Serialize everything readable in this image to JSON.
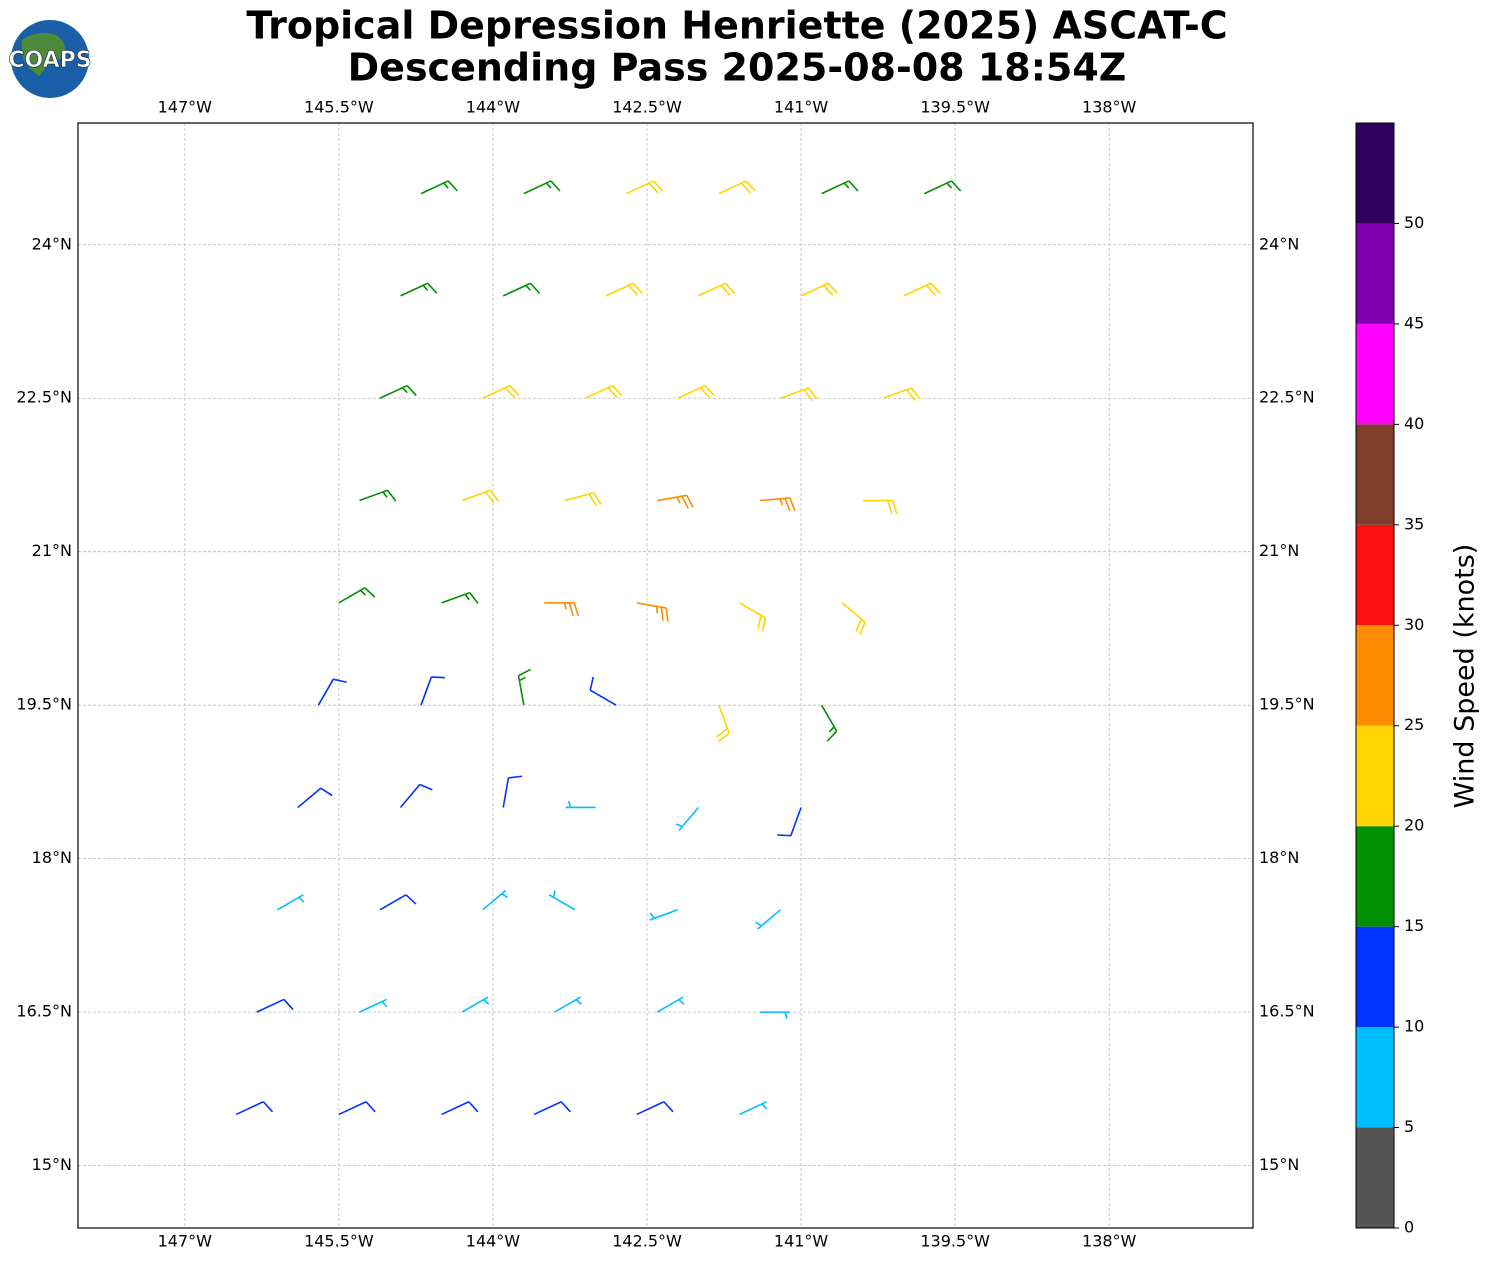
{
  "chart_data": {
    "type": "barbs",
    "logo": "COAPS",
    "title": "Tropical Depression Henriette (2025) ASCAT-C",
    "subtitle": "Descending Pass 2025-08-08 18:54Z",
    "xlim": [
      -148.04,
      -136.6
    ],
    "ylim": [
      14.39,
      25.19
    ],
    "xticks": [
      {
        "value": -147,
        "label": "147°W"
      },
      {
        "value": -145.5,
        "label": "145.5°W"
      },
      {
        "value": -144,
        "label": "144°W"
      },
      {
        "value": -142.5,
        "label": "142.5°W"
      },
      {
        "value": -141,
        "label": "141°W"
      },
      {
        "value": -139.5,
        "label": "139.5°W"
      },
      {
        "value": -138,
        "label": "138°W"
      }
    ],
    "yticks": [
      {
        "value": 24,
        "label": "24°N"
      },
      {
        "value": 22.5,
        "label": "22.5°N"
      },
      {
        "value": 21,
        "label": "21°N"
      },
      {
        "value": 19.5,
        "label": "19.5°N"
      },
      {
        "value": 18,
        "label": "18°N"
      },
      {
        "value": 16.5,
        "label": "16.5°N"
      },
      {
        "value": 15,
        "label": "15°N"
      }
    ],
    "grid": true,
    "colorbar": {
      "label": "Wind Speed (knots)",
      "lim": [
        0,
        55
      ],
      "ticks": [
        0,
        5,
        10,
        15,
        20,
        25,
        30,
        35,
        40,
        45,
        50
      ],
      "levels": [
        0,
        5,
        10,
        15,
        20,
        25,
        30,
        35,
        40,
        45,
        50,
        55
      ],
      "colors": [
        "#555555",
        "#00bfff",
        "#0033ff",
        "#009000",
        "#ffd400",
        "#ff8c00",
        "#ff1010",
        "#7f3f2a",
        "#ff00ff",
        "#8000b0",
        "#300060"
      ]
    },
    "barbs": [
      {
        "lon": -144.7,
        "lat": 24.5,
        "speed": 17,
        "dir": 65
      },
      {
        "lon": -143.7,
        "lat": 24.5,
        "speed": 17,
        "dir": 65
      },
      {
        "lon": -142.7,
        "lat": 24.5,
        "speed": 22,
        "dir": 65
      },
      {
        "lon": -141.8,
        "lat": 24.5,
        "speed": 22,
        "dir": 65
      },
      {
        "lon": -140.8,
        "lat": 24.5,
        "speed": 17,
        "dir": 65
      },
      {
        "lon": -139.8,
        "lat": 24.5,
        "speed": 17,
        "dir": 65
      },
      {
        "lon": -144.9,
        "lat": 23.5,
        "speed": 17,
        "dir": 65
      },
      {
        "lon": -143.9,
        "lat": 23.5,
        "speed": 17,
        "dir": 65
      },
      {
        "lon": -142.9,
        "lat": 23.5,
        "speed": 22,
        "dir": 65
      },
      {
        "lon": -142.0,
        "lat": 23.5,
        "speed": 22,
        "dir": 65
      },
      {
        "lon": -141.0,
        "lat": 23.5,
        "speed": 22,
        "dir": 65
      },
      {
        "lon": -140.0,
        "lat": 23.5,
        "speed": 22,
        "dir": 65
      },
      {
        "lon": -145.1,
        "lat": 22.5,
        "speed": 17,
        "dir": 65
      },
      {
        "lon": -144.1,
        "lat": 22.5,
        "speed": 22,
        "dir": 65
      },
      {
        "lon": -143.1,
        "lat": 22.5,
        "speed": 22,
        "dir": 65
      },
      {
        "lon": -142.2,
        "lat": 22.5,
        "speed": 22,
        "dir": 65
      },
      {
        "lon": -141.2,
        "lat": 22.5,
        "speed": 22,
        "dir": 70
      },
      {
        "lon": -140.2,
        "lat": 22.5,
        "speed": 22,
        "dir": 70
      },
      {
        "lon": -145.3,
        "lat": 21.5,
        "speed": 17,
        "dir": 70
      },
      {
        "lon": -144.3,
        "lat": 21.5,
        "speed": 22,
        "dir": 70
      },
      {
        "lon": -143.3,
        "lat": 21.5,
        "speed": 22,
        "dir": 75
      },
      {
        "lon": -142.4,
        "lat": 21.5,
        "speed": 27,
        "dir": 80
      },
      {
        "lon": -141.4,
        "lat": 21.5,
        "speed": 27,
        "dir": 85
      },
      {
        "lon": -140.4,
        "lat": 21.5,
        "speed": 22,
        "dir": 90
      },
      {
        "lon": -145.5,
        "lat": 20.5,
        "speed": 17,
        "dir": 60
      },
      {
        "lon": -144.5,
        "lat": 20.5,
        "speed": 17,
        "dir": 70
      },
      {
        "lon": -143.5,
        "lat": 20.5,
        "speed": 27,
        "dir": 90
      },
      {
        "lon": -142.6,
        "lat": 20.5,
        "speed": 27,
        "dir": 100
      },
      {
        "lon": -141.6,
        "lat": 20.5,
        "speed": 22,
        "dir": 120
      },
      {
        "lon": -140.6,
        "lat": 20.5,
        "speed": 22,
        "dir": 130
      },
      {
        "lon": -145.7,
        "lat": 19.5,
        "speed": 12,
        "dir": 30
      },
      {
        "lon": -144.7,
        "lat": 19.5,
        "speed": 14,
        "dir": 20
      },
      {
        "lon": -143.7,
        "lat": 19.5,
        "speed": 17,
        "dir": 350
      },
      {
        "lon": -142.8,
        "lat": 19.5,
        "speed": 12,
        "dir": 300
      },
      {
        "lon": -141.8,
        "lat": 19.5,
        "speed": 22,
        "dir": 160
      },
      {
        "lon": -140.8,
        "lat": 19.5,
        "speed": 17,
        "dir": 150
      },
      {
        "lon": -145.9,
        "lat": 18.5,
        "speed": 12,
        "dir": 50
      },
      {
        "lon": -144.9,
        "lat": 18.5,
        "speed": 12,
        "dir": 40
      },
      {
        "lon": -143.9,
        "lat": 18.5,
        "speed": 12,
        "dir": 10
      },
      {
        "lon": -143.0,
        "lat": 18.5,
        "speed": 8,
        "dir": 270
      },
      {
        "lon": -142.0,
        "lat": 18.5,
        "speed": 8,
        "dir": 220
      },
      {
        "lon": -141.0,
        "lat": 18.5,
        "speed": 12,
        "dir": 200
      },
      {
        "lon": -146.1,
        "lat": 17.5,
        "speed": 8,
        "dir": 60
      },
      {
        "lon": -145.1,
        "lat": 17.5,
        "speed": 12,
        "dir": 60
      },
      {
        "lon": -144.1,
        "lat": 17.5,
        "speed": 8,
        "dir": 50
      },
      {
        "lon": -143.2,
        "lat": 17.5,
        "speed": 8,
        "dir": 300
      },
      {
        "lon": -142.2,
        "lat": 17.5,
        "speed": 8,
        "dir": 250
      },
      {
        "lon": -141.2,
        "lat": 17.5,
        "speed": 7,
        "dir": 230
      },
      {
        "lon": -146.3,
        "lat": 16.5,
        "speed": 12,
        "dir": 65
      },
      {
        "lon": -145.3,
        "lat": 16.5,
        "speed": 8,
        "dir": 65
      },
      {
        "lon": -144.3,
        "lat": 16.5,
        "speed": 8,
        "dir": 60
      },
      {
        "lon": -143.4,
        "lat": 16.5,
        "speed": 8,
        "dir": 60
      },
      {
        "lon": -142.4,
        "lat": 16.5,
        "speed": 8,
        "dir": 60
      },
      {
        "lon": -141.4,
        "lat": 16.5,
        "speed": 8,
        "dir": 90
      },
      {
        "lon": -146.5,
        "lat": 15.5,
        "speed": 12,
        "dir": 65
      },
      {
        "lon": -145.5,
        "lat": 15.5,
        "speed": 12,
        "dir": 65
      },
      {
        "lon": -144.5,
        "lat": 15.5,
        "speed": 12,
        "dir": 65
      },
      {
        "lon": -143.6,
        "lat": 15.5,
        "speed": 12,
        "dir": 65
      },
      {
        "lon": -142.6,
        "lat": 15.5,
        "speed": 12,
        "dir": 65
      },
      {
        "lon": -141.6,
        "lat": 15.5,
        "speed": 8,
        "dir": 65
      }
    ]
  }
}
